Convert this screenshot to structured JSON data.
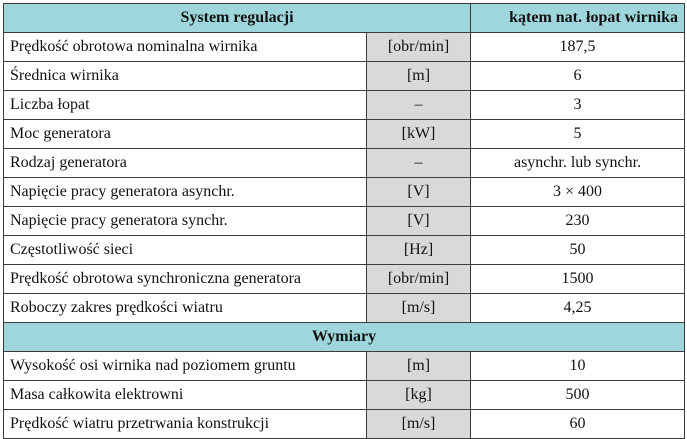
{
  "header": {
    "left": "System regulacji",
    "right": "kątem nat. łopat wirnika"
  },
  "rows": [
    {
      "label": "Prędkość obrotowa nominalna wirnika",
      "unit": "[obr/min]",
      "value": "187,5"
    },
    {
      "label": "Średnica wirnika",
      "unit": "[m]",
      "value": "6"
    },
    {
      "label": "Liczba łopat",
      "unit": "–",
      "value": "3"
    },
    {
      "label": "Moc generatora",
      "unit": "[kW]",
      "value": "5"
    },
    {
      "label": "Rodzaj generatora",
      "unit": "–",
      "value": "asynchr. lub synchr."
    },
    {
      "label": "Napięcie pracy generatora asynchr.",
      "unit": "[V]",
      "value": "3 × 400"
    },
    {
      "label": "Napięcie pracy generatora synchr.",
      "unit": "[V]",
      "value": "230"
    },
    {
      "label": "Częstotliwość sieci",
      "unit": "[Hz]",
      "value": "50"
    },
    {
      "label": "Prędkość obrotowa synchroniczna generatora",
      "unit": "[obr/min]",
      "value": "1500"
    },
    {
      "label": "Roboczy zakres prędkości wiatru",
      "unit": "[m/s]",
      "value": "4,25"
    }
  ],
  "section2": {
    "title": "Wymiary",
    "rows": [
      {
        "label": "Wysokość osi wirnika nad poziomem gruntu",
        "unit": "[m]",
        "value": "10"
      },
      {
        "label": "Masa całkowita elektrowni",
        "unit": "[kg]",
        "value": "500"
      },
      {
        "label": "Prędkość wiatru przetrwania konstrukcji",
        "unit": "[m/s]",
        "value": "60"
      }
    ]
  },
  "colors": {
    "header_bg": "#9fd6dc",
    "unit_bg": "#d9d9d9",
    "border": "#3c3c3c"
  }
}
